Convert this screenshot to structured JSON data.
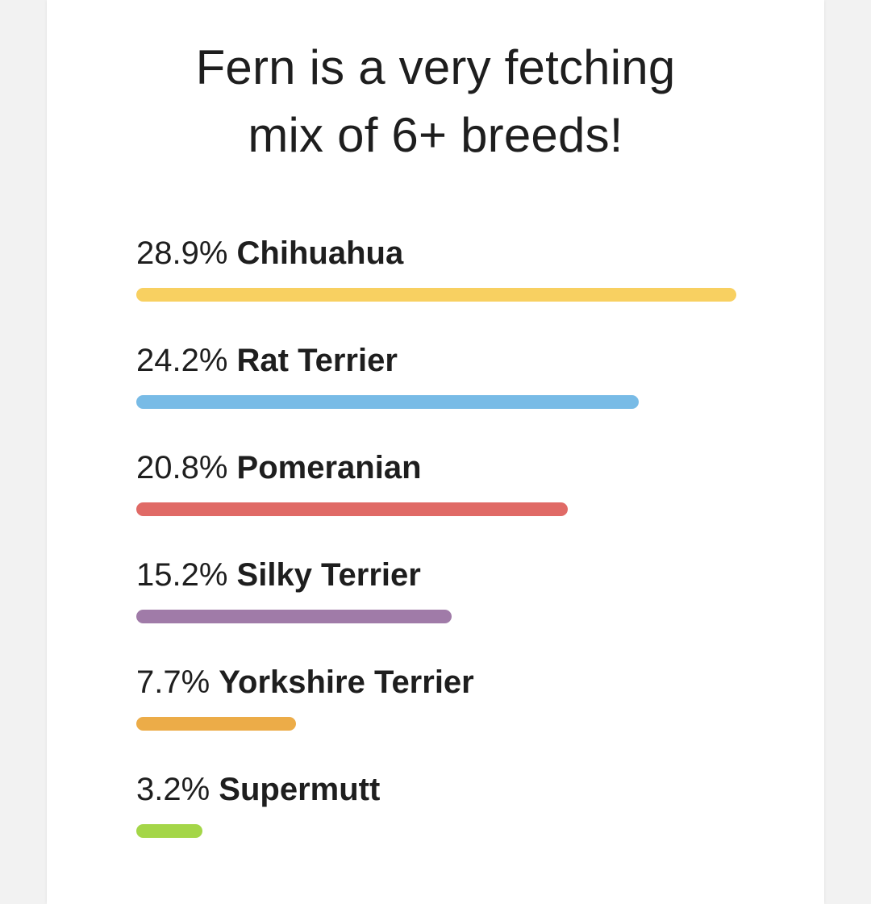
{
  "headline": {
    "line1": "Fern is a very fetching",
    "line2": "mix of 6+ breeds!"
  },
  "chart_data": {
    "type": "bar",
    "orientation": "horizontal",
    "title": "Fern is a very fetching mix of 6+ breeds!",
    "categories": [
      "Chihuahua",
      "Rat Terrier",
      "Pomeranian",
      "Silky Terrier",
      "Yorkshire Terrier",
      "Supermutt"
    ],
    "values": [
      28.9,
      24.2,
      20.8,
      15.2,
      7.7,
      3.2
    ],
    "labels": [
      "28.9%",
      "24.2%",
      "20.8%",
      "15.2%",
      "7.7%",
      "3.2%"
    ],
    "colors": [
      "#f8d061",
      "#78bbe6",
      "#e06a66",
      "#a07ba8",
      "#ecac48",
      "#a4d648"
    ],
    "xlim": [
      0,
      28.9
    ],
    "grid": false,
    "legend": "none"
  }
}
